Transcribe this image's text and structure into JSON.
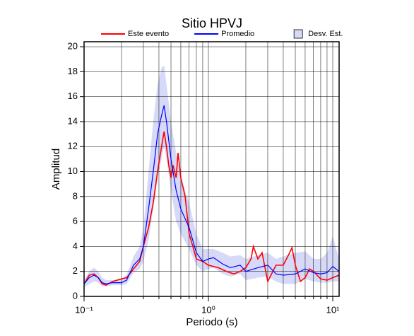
{
  "chart_data": {
    "type": "line",
    "title": "Sitio HPVJ",
    "x_label": "Periodo (s)",
    "y_label": "Amplitud",
    "xlog": true,
    "grid": true,
    "xlim": [
      0.1,
      11.25
    ],
    "ylim": [
      0,
      20.4
    ],
    "xticks": [
      {
        "value": 0.1,
        "label": "10⁻¹"
      },
      {
        "value": 1,
        "label": "10⁰"
      },
      {
        "value": 10,
        "label": "10¹"
      }
    ],
    "xminorticks": [
      0.2,
      0.3,
      0.4,
      0.5,
      0.6,
      0.7,
      0.8,
      0.9,
      2,
      3,
      4,
      5,
      6,
      7,
      8,
      9
    ],
    "yticks": [
      0,
      2,
      4,
      6,
      8,
      10,
      12,
      14,
      16,
      18,
      20
    ],
    "band": {
      "name": "Desv. Est.",
      "color": "#d6d9f7",
      "x": [
        0.1,
        0.11,
        0.12,
        0.13,
        0.14,
        0.15,
        0.17,
        0.2,
        0.22,
        0.25,
        0.28,
        0.3,
        0.33,
        0.36,
        0.39,
        0.42,
        0.44,
        0.46,
        0.5,
        0.55,
        0.6,
        0.7,
        0.8,
        0.9,
        1.0,
        1.1,
        1.3,
        1.5,
        1.8,
        2.0,
        2.5,
        3.0,
        3.5,
        4.0,
        5.0,
        6.0,
        7.0,
        8.0,
        9.0,
        10,
        11.25
      ],
      "upper": [
        1.3,
        2.0,
        2.3,
        2.0,
        1.5,
        1.3,
        1.3,
        1.4,
        1.7,
        3.2,
        4.0,
        5.5,
        10,
        14,
        17,
        18.3,
        18.5,
        17,
        14,
        11.5,
        9.5,
        7.5,
        5.0,
        3.8,
        3.8,
        3.8,
        3.5,
        3.2,
        3.3,
        3.0,
        3.3,
        3.5,
        3.0,
        3.2,
        3.5,
        3.6,
        3.0,
        3.0,
        3.5,
        4.8,
        3.0
      ],
      "lower": [
        0.7,
        1.0,
        1.2,
        1.1,
        0.8,
        0.8,
        0.9,
        0.9,
        1.0,
        1.9,
        2.2,
        2.8,
        4.5,
        7,
        9.5,
        11,
        12,
        11,
        8.5,
        6,
        5,
        3.8,
        2.5,
        2.0,
        2.2,
        2.3,
        1.8,
        1.6,
        1.8,
        1.3,
        1.5,
        1.6,
        1.2,
        1.0,
        1.0,
        1.4,
        1.2,
        1.1,
        1.1,
        1.2,
        1.2
      ]
    },
    "series": [
      {
        "name": "Este evento",
        "color": "#ff0000",
        "x": [
          0.1,
          0.11,
          0.12,
          0.13,
          0.14,
          0.15,
          0.17,
          0.2,
          0.22,
          0.25,
          0.28,
          0.3,
          0.33,
          0.36,
          0.39,
          0.42,
          0.44,
          0.46,
          0.48,
          0.5,
          0.52,
          0.55,
          0.57,
          0.6,
          0.65,
          0.7,
          0.75,
          0.8,
          0.9,
          1.0,
          1.2,
          1.4,
          1.6,
          1.8,
          2.0,
          2.2,
          2.3,
          2.5,
          2.7,
          3.0,
          3.5,
          4.0,
          4.5,
          4.7,
          5.0,
          5.5,
          6.0,
          6.5,
          7.0,
          8,
          9,
          10,
          11.25
        ],
        "values": [
          1.0,
          1.7,
          1.8,
          1.5,
          1.0,
          0.9,
          1.2,
          1.4,
          1.5,
          2.2,
          2.8,
          4.0,
          5.5,
          7.5,
          10,
          12,
          13.2,
          12,
          10.5,
          9.5,
          10.5,
          9.5,
          11.5,
          9.5,
          8.0,
          5.0,
          4.0,
          3.0,
          2.8,
          2.5,
          2.3,
          2.0,
          1.8,
          2.0,
          2.3,
          3.0,
          4.0,
          3.0,
          3.5,
          1.2,
          2.5,
          2.5,
          3.5,
          3.9,
          2.5,
          1.2,
          1.5,
          2.2,
          2.0,
          1.4,
          1.3,
          1.5,
          1.7
        ]
      },
      {
        "name": "Promedio",
        "color": "#0000ff",
        "x": [
          0.1,
          0.11,
          0.12,
          0.13,
          0.14,
          0.15,
          0.17,
          0.2,
          0.22,
          0.25,
          0.28,
          0.3,
          0.33,
          0.36,
          0.39,
          0.42,
          0.44,
          0.46,
          0.5,
          0.55,
          0.6,
          0.7,
          0.8,
          0.9,
          1.0,
          1.1,
          1.3,
          1.5,
          1.8,
          2.0,
          2.5,
          3.0,
          3.5,
          4.0,
          5.0,
          6.0,
          7.0,
          8.0,
          9.0,
          10,
          11.25
        ],
        "values": [
          1.0,
          1.5,
          1.7,
          1.5,
          1.1,
          1.0,
          1.1,
          1.1,
          1.3,
          2.5,
          3.0,
          4.0,
          7,
          10,
          13,
          14.5,
          15.3,
          14,
          11,
          8.5,
          7.0,
          5.5,
          3.5,
          2.8,
          3.0,
          3.1,
          2.6,
          2.3,
          2.5,
          2.0,
          2.3,
          2.5,
          1.8,
          1.7,
          1.8,
          2.2,
          1.9,
          1.8,
          1.9,
          2.4,
          2.0
        ]
      }
    ]
  }
}
